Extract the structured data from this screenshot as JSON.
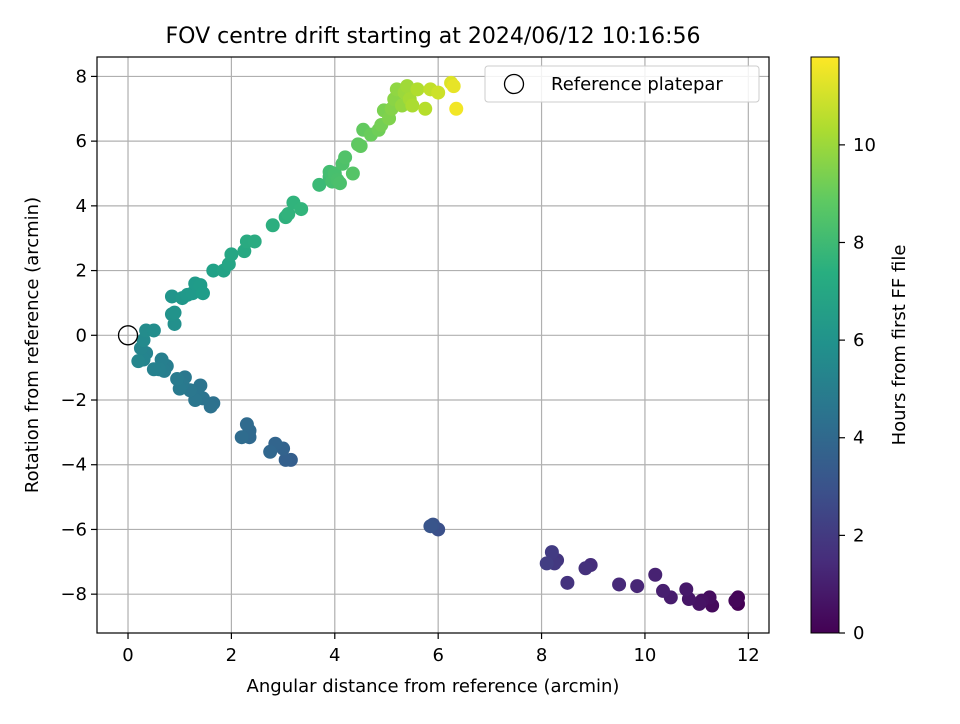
{
  "chart_data": {
    "type": "scatter",
    "title": "FOV centre drift starting at 2024/06/12 10:16:56",
    "xlabel": "Angular distance from reference (arcmin)",
    "ylabel": "Rotation from reference (arcmin)",
    "xlim": [
      -0.6,
      12.4
    ],
    "ylim": [
      -9.2,
      8.6
    ],
    "x_ticks": [
      0,
      2,
      4,
      6,
      8,
      10,
      12
    ],
    "y_ticks": [
      -8,
      -6,
      -4,
      -2,
      0,
      2,
      4,
      6,
      8
    ],
    "grid": true,
    "legend": {
      "placement": "top-right",
      "entries": [
        "Reference platepar"
      ]
    },
    "colorbar": {
      "label": "Hours from first FF file",
      "min": 0,
      "max": 11.8,
      "ticks": [
        0,
        2,
        4,
        6,
        8,
        10
      ],
      "colormap": "viridis"
    },
    "reference_point": {
      "name": "Reference platepar",
      "x": 0,
      "y": 0
    },
    "series": [
      {
        "points": [
          {
            "x": 11.8,
            "y": -8.3,
            "c": 0.0
          },
          {
            "x": 11.8,
            "y": -8.1,
            "c": 0.1
          },
          {
            "x": 11.75,
            "y": -8.2,
            "c": 0.2
          },
          {
            "x": 11.3,
            "y": -8.35,
            "c": 0.3
          },
          {
            "x": 11.25,
            "y": -8.1,
            "c": 0.4
          },
          {
            "x": 11.1,
            "y": -8.2,
            "c": 0.5
          },
          {
            "x": 11.05,
            "y": -8.3,
            "c": 0.6
          },
          {
            "x": 10.85,
            "y": -8.15,
            "c": 0.7
          },
          {
            "x": 10.8,
            "y": -7.85,
            "c": 0.8
          },
          {
            "x": 10.5,
            "y": -8.1,
            "c": 0.9
          },
          {
            "x": 10.35,
            "y": -7.9,
            "c": 1.0
          },
          {
            "x": 10.2,
            "y": -7.4,
            "c": 1.1
          },
          {
            "x": 9.85,
            "y": -7.75,
            "c": 1.25
          },
          {
            "x": 9.5,
            "y": -7.7,
            "c": 1.4
          },
          {
            "x": 8.95,
            "y": -7.1,
            "c": 1.55
          },
          {
            "x": 8.85,
            "y": -7.2,
            "c": 1.65
          },
          {
            "x": 8.5,
            "y": -7.65,
            "c": 1.75
          },
          {
            "x": 8.3,
            "y": -6.95,
            "c": 1.85
          },
          {
            "x": 8.25,
            "y": -7.05,
            "c": 1.95
          },
          {
            "x": 8.2,
            "y": -6.7,
            "c": 2.05
          },
          {
            "x": 8.1,
            "y": -7.05,
            "c": 2.15
          },
          {
            "x": 6.0,
            "y": -6.0,
            "c": 2.9
          },
          {
            "x": 5.9,
            "y": -5.85,
            "c": 3.0
          },
          {
            "x": 5.85,
            "y": -5.9,
            "c": 3.1
          },
          {
            "x": 3.15,
            "y": -3.85,
            "c": 3.5
          },
          {
            "x": 3.05,
            "y": -3.85,
            "c": 3.6
          },
          {
            "x": 3.0,
            "y": -3.5,
            "c": 3.7
          },
          {
            "x": 2.85,
            "y": -3.35,
            "c": 3.8
          },
          {
            "x": 2.75,
            "y": -3.6,
            "c": 3.9
          },
          {
            "x": 2.35,
            "y": -3.15,
            "c": 4.0
          },
          {
            "x": 2.35,
            "y": -2.95,
            "c": 4.05
          },
          {
            "x": 2.3,
            "y": -2.75,
            "c": 4.1
          },
          {
            "x": 2.2,
            "y": -3.15,
            "c": 4.15
          },
          {
            "x": 1.65,
            "y": -2.1,
            "c": 4.4
          },
          {
            "x": 1.6,
            "y": -2.2,
            "c": 4.45
          },
          {
            "x": 1.45,
            "y": -1.95,
            "c": 4.5
          },
          {
            "x": 1.4,
            "y": -1.55,
            "c": 4.55
          },
          {
            "x": 1.35,
            "y": -1.8,
            "c": 4.6
          },
          {
            "x": 1.3,
            "y": -2.0,
            "c": 4.65
          },
          {
            "x": 1.2,
            "y": -1.7,
            "c": 4.7
          },
          {
            "x": 1.1,
            "y": -1.3,
            "c": 4.75
          },
          {
            "x": 1.05,
            "y": -1.5,
            "c": 4.8
          },
          {
            "x": 1.0,
            "y": -1.65,
            "c": 4.85
          },
          {
            "x": 0.95,
            "y": -1.35,
            "c": 4.9
          },
          {
            "x": 0.75,
            "y": -0.95,
            "c": 5.0
          },
          {
            "x": 0.7,
            "y": -1.1,
            "c": 5.05
          },
          {
            "x": 0.65,
            "y": -0.75,
            "c": 5.1
          },
          {
            "x": 0.6,
            "y": -1.05,
            "c": 5.15
          },
          {
            "x": 0.5,
            "y": -1.05,
            "c": 5.2
          },
          {
            "x": 0.35,
            "y": -0.55,
            "c": 5.3
          },
          {
            "x": 0.3,
            "y": -0.75,
            "c": 5.35
          },
          {
            "x": 0.25,
            "y": -0.4,
            "c": 5.4
          },
          {
            "x": 0.2,
            "y": -0.8,
            "c": 5.45
          },
          {
            "x": 0.3,
            "y": -0.15,
            "c": 5.6
          },
          {
            "x": 0.35,
            "y": 0.15,
            "c": 5.7
          },
          {
            "x": 0.5,
            "y": 0.15,
            "c": 5.75
          },
          {
            "x": 0.9,
            "y": 0.35,
            "c": 5.9
          },
          {
            "x": 0.85,
            "y": 0.65,
            "c": 6.0
          },
          {
            "x": 0.9,
            "y": 0.7,
            "c": 6.05
          },
          {
            "x": 0.85,
            "y": 1.2,
            "c": 6.15
          },
          {
            "x": 1.05,
            "y": 1.15,
            "c": 6.25
          },
          {
            "x": 1.15,
            "y": 1.25,
            "c": 6.3
          },
          {
            "x": 1.25,
            "y": 1.3,
            "c": 6.35
          },
          {
            "x": 1.3,
            "y": 1.6,
            "c": 6.4
          },
          {
            "x": 1.4,
            "y": 1.55,
            "c": 6.45
          },
          {
            "x": 1.45,
            "y": 1.3,
            "c": 6.5
          },
          {
            "x": 1.65,
            "y": 2.0,
            "c": 6.7
          },
          {
            "x": 1.85,
            "y": 2.0,
            "c": 6.8
          },
          {
            "x": 1.95,
            "y": 2.2,
            "c": 6.9
          },
          {
            "x": 2.0,
            "y": 2.5,
            "c": 7.0
          },
          {
            "x": 2.25,
            "y": 2.6,
            "c": 7.1
          },
          {
            "x": 2.3,
            "y": 2.9,
            "c": 7.2
          },
          {
            "x": 2.45,
            "y": 2.9,
            "c": 7.25
          },
          {
            "x": 2.8,
            "y": 3.4,
            "c": 7.4
          },
          {
            "x": 3.05,
            "y": 3.65,
            "c": 7.5
          },
          {
            "x": 3.1,
            "y": 3.75,
            "c": 7.6
          },
          {
            "x": 3.2,
            "y": 4.1,
            "c": 7.65
          },
          {
            "x": 3.35,
            "y": 3.9,
            "c": 7.7
          },
          {
            "x": 3.7,
            "y": 4.65,
            "c": 8.0
          },
          {
            "x": 3.9,
            "y": 4.9,
            "c": 8.1
          },
          {
            "x": 3.9,
            "y": 5.05,
            "c": 8.2
          },
          {
            "x": 3.95,
            "y": 4.75,
            "c": 8.25
          },
          {
            "x": 4.0,
            "y": 5.0,
            "c": 8.3
          },
          {
            "x": 4.05,
            "y": 4.8,
            "c": 8.35
          },
          {
            "x": 4.1,
            "y": 4.7,
            "c": 8.4
          },
          {
            "x": 4.15,
            "y": 5.3,
            "c": 8.45
          },
          {
            "x": 4.2,
            "y": 5.5,
            "c": 8.5
          },
          {
            "x": 4.35,
            "y": 5.0,
            "c": 8.6
          },
          {
            "x": 4.45,
            "y": 5.9,
            "c": 8.8
          },
          {
            "x": 4.5,
            "y": 5.85,
            "c": 8.85
          },
          {
            "x": 4.55,
            "y": 6.35,
            "c": 8.9
          },
          {
            "x": 4.7,
            "y": 6.2,
            "c": 9.05
          },
          {
            "x": 4.85,
            "y": 6.35,
            "c": 9.2
          },
          {
            "x": 4.9,
            "y": 6.5,
            "c": 9.3
          },
          {
            "x": 4.95,
            "y": 6.95,
            "c": 9.4
          },
          {
            "x": 5.05,
            "y": 6.7,
            "c": 9.5
          },
          {
            "x": 5.1,
            "y": 7.0,
            "c": 9.6
          },
          {
            "x": 5.15,
            "y": 7.3,
            "c": 9.7
          },
          {
            "x": 5.2,
            "y": 7.6,
            "c": 9.8
          },
          {
            "x": 5.3,
            "y": 7.1,
            "c": 9.9
          },
          {
            "x": 5.35,
            "y": 7.5,
            "c": 10.0
          },
          {
            "x": 5.4,
            "y": 7.7,
            "c": 10.1
          },
          {
            "x": 5.45,
            "y": 7.3,
            "c": 10.2
          },
          {
            "x": 5.5,
            "y": 7.1,
            "c": 10.3
          },
          {
            "x": 5.6,
            "y": 7.6,
            "c": 10.4
          },
          {
            "x": 5.75,
            "y": 7.0,
            "c": 10.5
          },
          {
            "x": 5.85,
            "y": 7.6,
            "c": 10.7
          },
          {
            "x": 6.0,
            "y": 7.5,
            "c": 10.9
          },
          {
            "x": 6.25,
            "y": 7.8,
            "c": 11.2
          },
          {
            "x": 6.3,
            "y": 7.7,
            "c": 11.4
          },
          {
            "x": 6.35,
            "y": 7.0,
            "c": 11.6
          }
        ]
      }
    ]
  }
}
